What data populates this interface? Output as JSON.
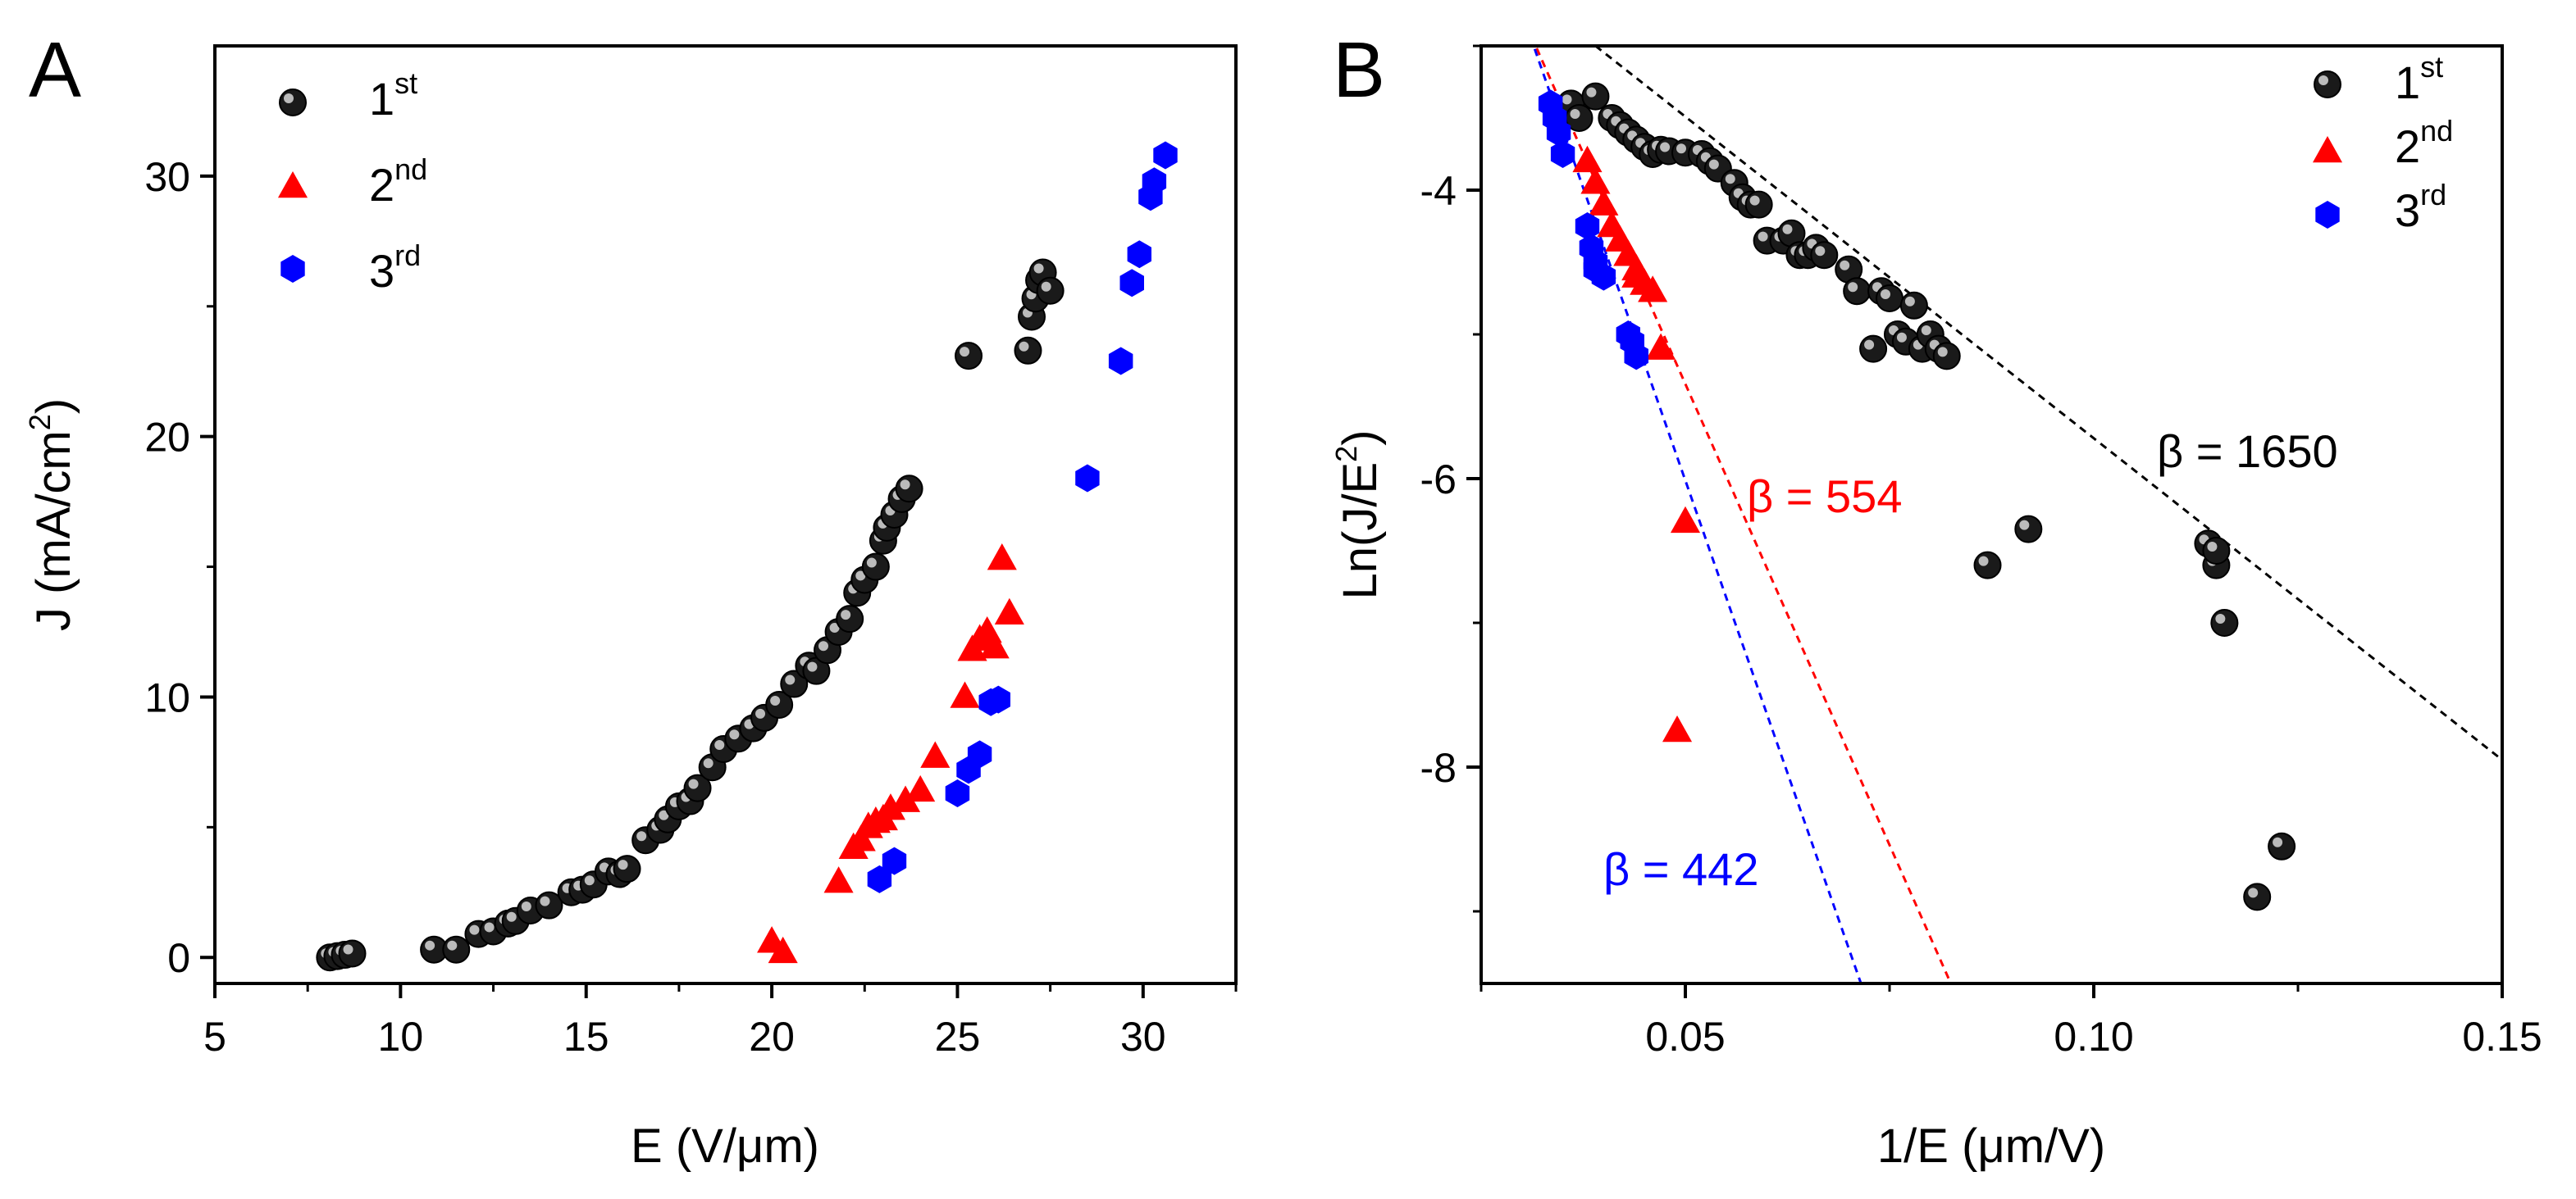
{
  "colors": {
    "first": "#1a1a1a",
    "second": "#ff0000",
    "third": "#0000ff",
    "fit_first": "#000000",
    "fit_second": "#ff0000",
    "fit_third": "#0000ff"
  },
  "panel_a": {
    "letter": "A"
  },
  "panel_b": {
    "letter": "B"
  },
  "legend_a": {
    "items": [
      {
        "base": "1",
        "sup": "st"
      },
      {
        "base": "2",
        "sup": "nd"
      },
      {
        "base": "3",
        "sup": "rd"
      }
    ]
  },
  "legend_b": {
    "items": [
      {
        "base": "1",
        "sup": "st"
      },
      {
        "base": "2",
        "sup": "nd"
      },
      {
        "base": "3",
        "sup": "rd"
      }
    ]
  },
  "axes_a": {
    "xlabel": "E (V/μm)",
    "ylabel_main": "J (mA/cm",
    "ylabel_sup": "2",
    "ylabel_close": ")"
  },
  "axes_b": {
    "xlabel": "1/E (μm/V)",
    "ylabel_main": "Ln(J/E",
    "ylabel_sup": "2",
    "ylabel_close": ")"
  },
  "annotations_b": {
    "beta_first": "β = 1650",
    "beta_second": "β = 554",
    "beta_third": "β = 442"
  },
  "chart_data": [
    {
      "type": "scatter",
      "title": "",
      "xlabel": "E (V/μm)",
      "ylabel": "J (mA/cm2)",
      "xlim": [
        5,
        32.5
      ],
      "ylim": [
        -1,
        35
      ],
      "xticks": [
        5,
        10,
        15,
        20,
        25,
        30
      ],
      "xtick_labels": [
        "5",
        "10",
        "15",
        "20",
        "25",
        "30"
      ],
      "yticks": [
        0,
        10,
        20,
        30
      ],
      "ytick_labels": [
        "0",
        "10",
        "20",
        "30"
      ],
      "legend_position": "top-left",
      "series": [
        {
          "name": "1st",
          "marker": "circle",
          "x": [
            8.1,
            8.3,
            8.5,
            8.7,
            10.9,
            11.5,
            12.1,
            12.5,
            12.9,
            13.1,
            13.5,
            14.0,
            14.6,
            14.9,
            15.2,
            15.6,
            15.9,
            16.1,
            16.6,
            17.0,
            17.2,
            17.5,
            17.8,
            18.0,
            18.4,
            18.7,
            19.1,
            19.5,
            19.8,
            20.2,
            20.6,
            21.0,
            21.2,
            21.5,
            21.8,
            22.1,
            22.3,
            22.5,
            22.8,
            23.0,
            23.1,
            23.3,
            23.5,
            23.7,
            25.3,
            26.9,
            27.0,
            27.1,
            27.2,
            27.3,
            27.5
          ],
          "y": [
            0.0,
            0.05,
            0.1,
            0.15,
            0.3,
            0.3,
            0.9,
            1.0,
            1.3,
            1.4,
            1.8,
            2.0,
            2.5,
            2.6,
            2.8,
            3.3,
            3.2,
            3.4,
            4.5,
            4.9,
            5.3,
            5.8,
            6.0,
            6.5,
            7.3,
            8.0,
            8.4,
            8.8,
            9.2,
            9.7,
            10.5,
            11.2,
            11.0,
            11.8,
            12.5,
            13.0,
            14.0,
            14.5,
            15.0,
            16.0,
            16.5,
            17.0,
            17.6,
            18.0,
            23.1,
            23.3,
            24.6,
            25.3,
            26.0,
            26.3,
            25.6
          ]
        },
        {
          "name": "2nd",
          "marker": "triangle",
          "x": [
            20.0,
            20.3,
            21.8,
            22.2,
            22.4,
            22.6,
            22.8,
            23.0,
            23.2,
            23.6,
            24.0,
            24.4,
            25.2,
            25.4,
            25.6,
            25.8,
            26.0,
            26.2,
            26.4
          ],
          "y": [
            0.6,
            0.2,
            2.9,
            4.2,
            4.5,
            5.0,
            5.2,
            5.3,
            5.7,
            6.0,
            6.4,
            7.7,
            10.0,
            11.8,
            12.2,
            12.5,
            11.9,
            15.3,
            13.2
          ]
        },
        {
          "name": "3rd",
          "marker": "hexagon",
          "x": [
            22.9,
            23.3,
            25.0,
            25.3,
            25.6,
            25.9,
            26.1,
            28.5,
            29.4,
            29.7,
            29.9,
            30.2,
            30.3,
            30.6
          ],
          "y": [
            3.0,
            3.7,
            6.3,
            7.2,
            7.8,
            9.8,
            9.9,
            18.4,
            22.9,
            25.9,
            27.0,
            29.2,
            29.8,
            30.8
          ]
        }
      ]
    },
    {
      "type": "scatter",
      "title": "",
      "xlabel": "1/E (μm/V)",
      "ylabel": "Ln(J/E2)",
      "xlim": [
        0.025,
        0.15
      ],
      "ylim": [
        -9.5,
        -3.0
      ],
      "xticks": [
        0.05,
        0.1,
        0.15
      ],
      "xtick_labels": [
        "0.05",
        "0.10",
        "0.15"
      ],
      "yticks": [
        -8,
        -6,
        -4
      ],
      "ytick_labels": [
        "-8",
        "-6",
        "-4"
      ],
      "legend_position": "top-right",
      "series": [
        {
          "name": "1st",
          "marker": "circle",
          "x": [
            0.036,
            0.037,
            0.039,
            0.041,
            0.042,
            0.043,
            0.044,
            0.045,
            0.046,
            0.047,
            0.048,
            0.05,
            0.052,
            0.053,
            0.054,
            0.056,
            0.057,
            0.058,
            0.059,
            0.06,
            0.062,
            0.063,
            0.064,
            0.065,
            0.066,
            0.067,
            0.07,
            0.071,
            0.073,
            0.074,
            0.075,
            0.076,
            0.077,
            0.078,
            0.079,
            0.08,
            0.081,
            0.082,
            0.087,
            0.092,
            0.114,
            0.115,
            0.115,
            0.116,
            0.12,
            0.123
          ],
          "y": [
            -3.4,
            -3.5,
            -3.35,
            -3.5,
            -3.55,
            -3.6,
            -3.65,
            -3.7,
            -3.75,
            -3.72,
            -3.73,
            -3.74,
            -3.75,
            -3.8,
            -3.85,
            -3.95,
            -4.05,
            -4.1,
            -4.1,
            -4.35,
            -4.35,
            -4.3,
            -4.45,
            -4.45,
            -4.4,
            -4.45,
            -4.55,
            -4.7,
            -5.1,
            -4.7,
            -4.75,
            -5.0,
            -5.05,
            -4.8,
            -5.1,
            -5.0,
            -5.1,
            -5.15,
            -6.6,
            -6.35,
            -6.45,
            -6.6,
            -6.5,
            -7.0,
            -8.9,
            -8.55
          ]
        },
        {
          "name": "2nd",
          "marker": "triangle",
          "x": [
            0.038,
            0.039,
            0.04,
            0.041,
            0.042,
            0.043,
            0.044,
            0.044,
            0.045,
            0.046,
            0.047,
            0.049,
            0.05
          ],
          "y": [
            -3.8,
            -3.95,
            -4.1,
            -4.25,
            -4.35,
            -4.45,
            -4.55,
            -4.6,
            -4.65,
            -4.7,
            -5.1,
            -7.75,
            -6.3
          ]
        },
        {
          "name": "3rd",
          "marker": "hexagon",
          "x": [
            0.0335,
            0.034,
            0.0345,
            0.035,
            0.038,
            0.0385,
            0.039,
            0.039,
            0.04,
            0.043,
            0.0435,
            0.044
          ],
          "y": [
            -3.4,
            -3.5,
            -3.6,
            -3.75,
            -4.25,
            -4.4,
            -4.5,
            -4.55,
            -4.6,
            -5.0,
            -5.05,
            -5.15
          ]
        }
      ],
      "fit_lines": [
        {
          "name": "1st fit",
          "beta": 1650,
          "x": [
            0.039,
            0.15
          ],
          "y": [
            -3.0,
            -7.95
          ]
        },
        {
          "name": "2nd fit",
          "beta": 554,
          "x": [
            0.0305,
            0.0825
          ],
          "y": [
            -2.85,
            -9.5
          ]
        },
        {
          "name": "3rd fit",
          "beta": 442,
          "x": [
            0.0305,
            0.0715
          ],
          "y": [
            -2.85,
            -9.5
          ]
        }
      ]
    }
  ]
}
